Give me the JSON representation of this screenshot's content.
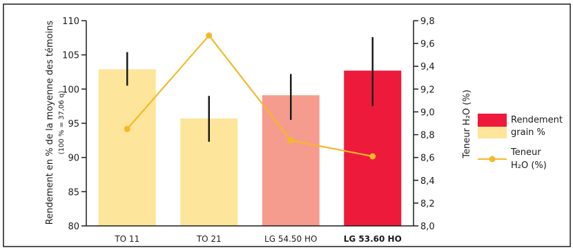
{
  "chart_data": {
    "type": "bar",
    "categories": [
      "TO 11",
      "TO 21",
      "LG 54.50 HO",
      "LG 53.60 HO"
    ],
    "highlighted_category": "LG 53.60 HO",
    "bar_series": {
      "name": "Rendement grain %",
      "values": [
        102.9,
        95.7,
        99.1,
        102.7
      ],
      "error_low": [
        100.5,
        92.3,
        95.5,
        97.5
      ],
      "error_high": [
        105.4,
        99.0,
        102.2,
        107.6
      ],
      "colors": [
        "#FDE69B",
        "#FDE69B",
        "#F59C8E",
        "#EE1A3C"
      ]
    },
    "line_series": {
      "name": "Teneur H2O (%)",
      "values": [
        8.85,
        9.67,
        8.75,
        8.61
      ],
      "color": "#F5B82A"
    },
    "y_left": {
      "label_line1": "Rendement en % de la moyenne des témoins",
      "label_line2": "(100 % = 37,06 q)",
      "lim": [
        80,
        110
      ],
      "ticks": [
        "80",
        "85",
        "90",
        "95",
        "100",
        "105",
        "110"
      ]
    },
    "y_right": {
      "label": "Teneur H₂O (%)",
      "lim": [
        8.0,
        9.8
      ],
      "ticks": [
        "8,0",
        "8,2",
        "8,4",
        "8,6",
        "8,8",
        "9,0",
        "9,2",
        "9,4",
        "9,6",
        "9,8"
      ]
    },
    "legend": {
      "placement": "right",
      "bar_entry": {
        "line1": "Rendement",
        "line2": "grain %",
        "swatch_top": "#EE1A3C",
        "swatch_bottom": "#FDE69B"
      },
      "line_entry": {
        "line1": "Teneur",
        "line2": "H₂O (%)"
      }
    }
  }
}
